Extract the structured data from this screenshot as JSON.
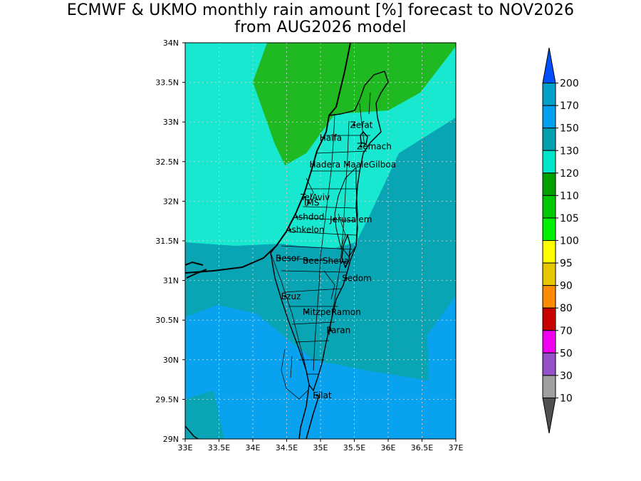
{
  "title": {
    "line1": "ECMWF & UKMO monthly rain amount [%] forecast to NOV2026",
    "line2": "from AUG2026 model"
  },
  "map": {
    "lat_ticks": [
      "34N",
      "33.5N",
      "33N",
      "32.5N",
      "32N",
      "31.5N",
      "31N",
      "30.5N",
      "30N",
      "29.5N",
      "29N"
    ],
    "lon_ticks": [
      "33E",
      "33.5E",
      "34E",
      "34.5E",
      "35E",
      "35.5E",
      "36E",
      "36.5E",
      "37E"
    ],
    "lat_range": [
      29,
      34
    ],
    "lon_range": [
      33,
      37
    ],
    "grid": "dotted",
    "places": [
      {
        "name": "Zefat",
        "lon": 35.5,
        "lat": 32.96
      },
      {
        "name": "Haifa",
        "lon": 35.05,
        "lat": 32.8
      },
      {
        "name": "Zemach",
        "lon": 35.6,
        "lat": 32.69
      },
      {
        "name": "Hadera",
        "lon": 34.9,
        "lat": 32.46
      },
      {
        "name": "MaaleGilboa",
        "lon": 35.4,
        "lat": 32.46
      },
      {
        "name": "TelAviv",
        "lon": 34.77,
        "lat": 32.05
      },
      {
        "name": "IMS",
        "lon": 34.82,
        "lat": 31.98
      },
      {
        "name": "Ashdod",
        "lon": 34.65,
        "lat": 31.8
      },
      {
        "name": "Jerusalem",
        "lon": 35.2,
        "lat": 31.77
      },
      {
        "name": "Ashkelon",
        "lon": 34.55,
        "lat": 31.64
      },
      {
        "name": "Besor",
        "lon": 34.4,
        "lat": 31.28
      },
      {
        "name": "BeerSheva",
        "lon": 34.8,
        "lat": 31.25
      },
      {
        "name": "Sedom",
        "lon": 35.38,
        "lat": 31.03
      },
      {
        "name": "Ezuz",
        "lon": 34.48,
        "lat": 30.8
      },
      {
        "name": "MitzpeRamon",
        "lon": 34.8,
        "lat": 30.6
      },
      {
        "name": "Paran",
        "lon": 35.15,
        "lat": 30.37
      },
      {
        "name": "Eilat",
        "lon": 34.95,
        "lat": 29.55
      }
    ]
  },
  "colorbar": {
    "labels": [
      "200",
      "170",
      "150",
      "130",
      "120",
      "110",
      "105",
      "100",
      "95",
      "90",
      "80",
      "70",
      "50",
      "30",
      "10"
    ],
    "colors": [
      "#0050ff",
      "#00a0c8",
      "#00a0f0",
      "#00a0b0",
      "#00e6c8",
      "#00a000",
      "#00c800",
      "#00f000",
      "#ffff00",
      "#e6c800",
      "#ff8c00",
      "#c80000",
      "#f000f0",
      "#9650c8",
      "#a0a0a0",
      "#505050"
    ],
    "fills": {
      "green": "#1fba21",
      "turquoise": "#17e8cf",
      "teal": "#0aa5b4",
      "light_blue": "#09a2ee"
    }
  }
}
